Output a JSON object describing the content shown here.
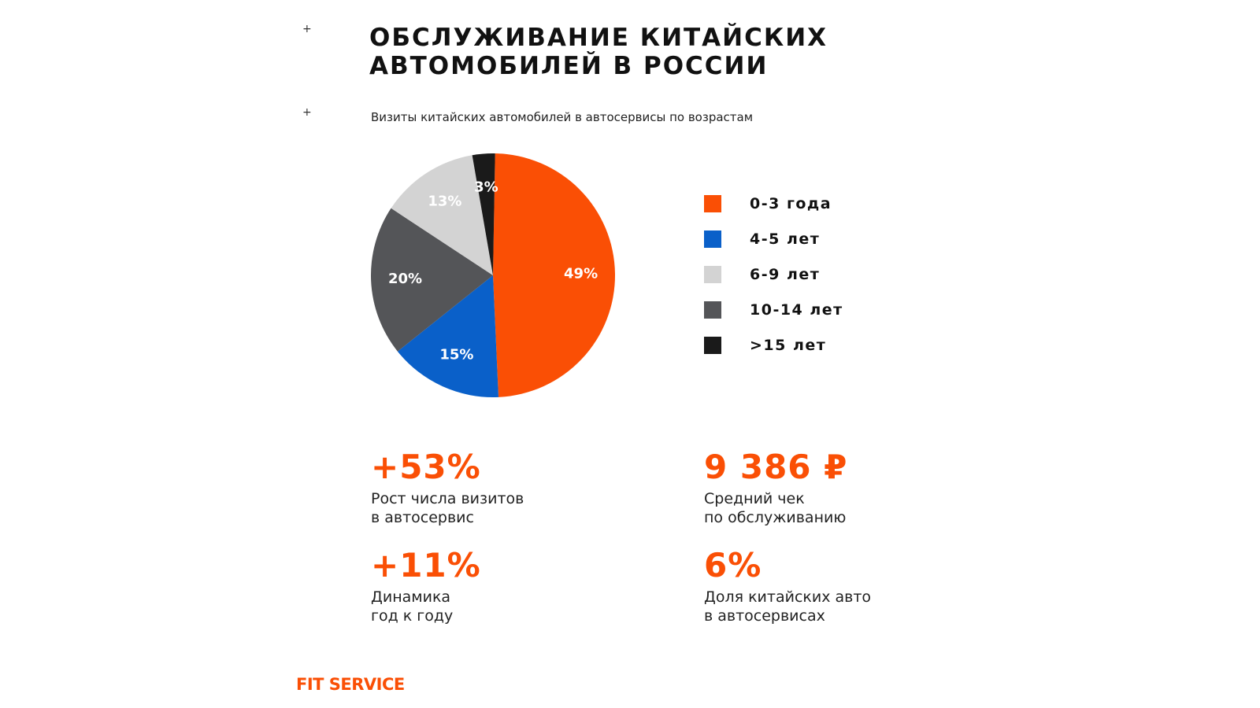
{
  "decor": {
    "plus": "+"
  },
  "header": {
    "title_line1": "ОБСЛУЖИВАНИЕ КИТАЙСКИХ",
    "title_line2": "АВТОМОБИЛЕЙ В РОССИИ",
    "subtitle": "Визиты китайских автомобилей в автосервисы по возрастам"
  },
  "chart_data": {
    "type": "pie",
    "title": "Визиты китайских автомобилей в автосервисы по возрастам",
    "legend_position": "right",
    "slices": [
      {
        "label": "0-3 года",
        "value": 49,
        "display": "49%",
        "color": "#fa4f05"
      },
      {
        "label": "4-5 лет",
        "value": 15,
        "display": "15%",
        "color": "#0a60c9"
      },
      {
        "label": "6-9 лет",
        "value": 13,
        "display": "13%",
        "color": "#d3d3d3"
      },
      {
        "label": "10-14 лет",
        "value": 20,
        "display": "20%",
        "color": "#545558"
      },
      {
        "label": ">15 лет",
        "value": 3,
        "display": "3%",
        "color": "#1a1a1a"
      }
    ]
  },
  "stats": [
    {
      "value": "+53%",
      "line1": "Рост числа визитов",
      "line2": "в автосервис"
    },
    {
      "value": "9 386 ₽",
      "line1": "Средний чек",
      "line2": "по обслуживанию"
    },
    {
      "value": "+11%",
      "line1": "Динамика",
      "line2": "год к году"
    },
    {
      "value": "6%",
      "line1": "Доля китайских авто",
      "line2": "в автосервисах"
    }
  ],
  "footer": {
    "logo": "FIT SERVICE"
  },
  "colors": {
    "accent": "#fa4f05",
    "text": "#1a1a1a",
    "background": "#ffffff"
  }
}
